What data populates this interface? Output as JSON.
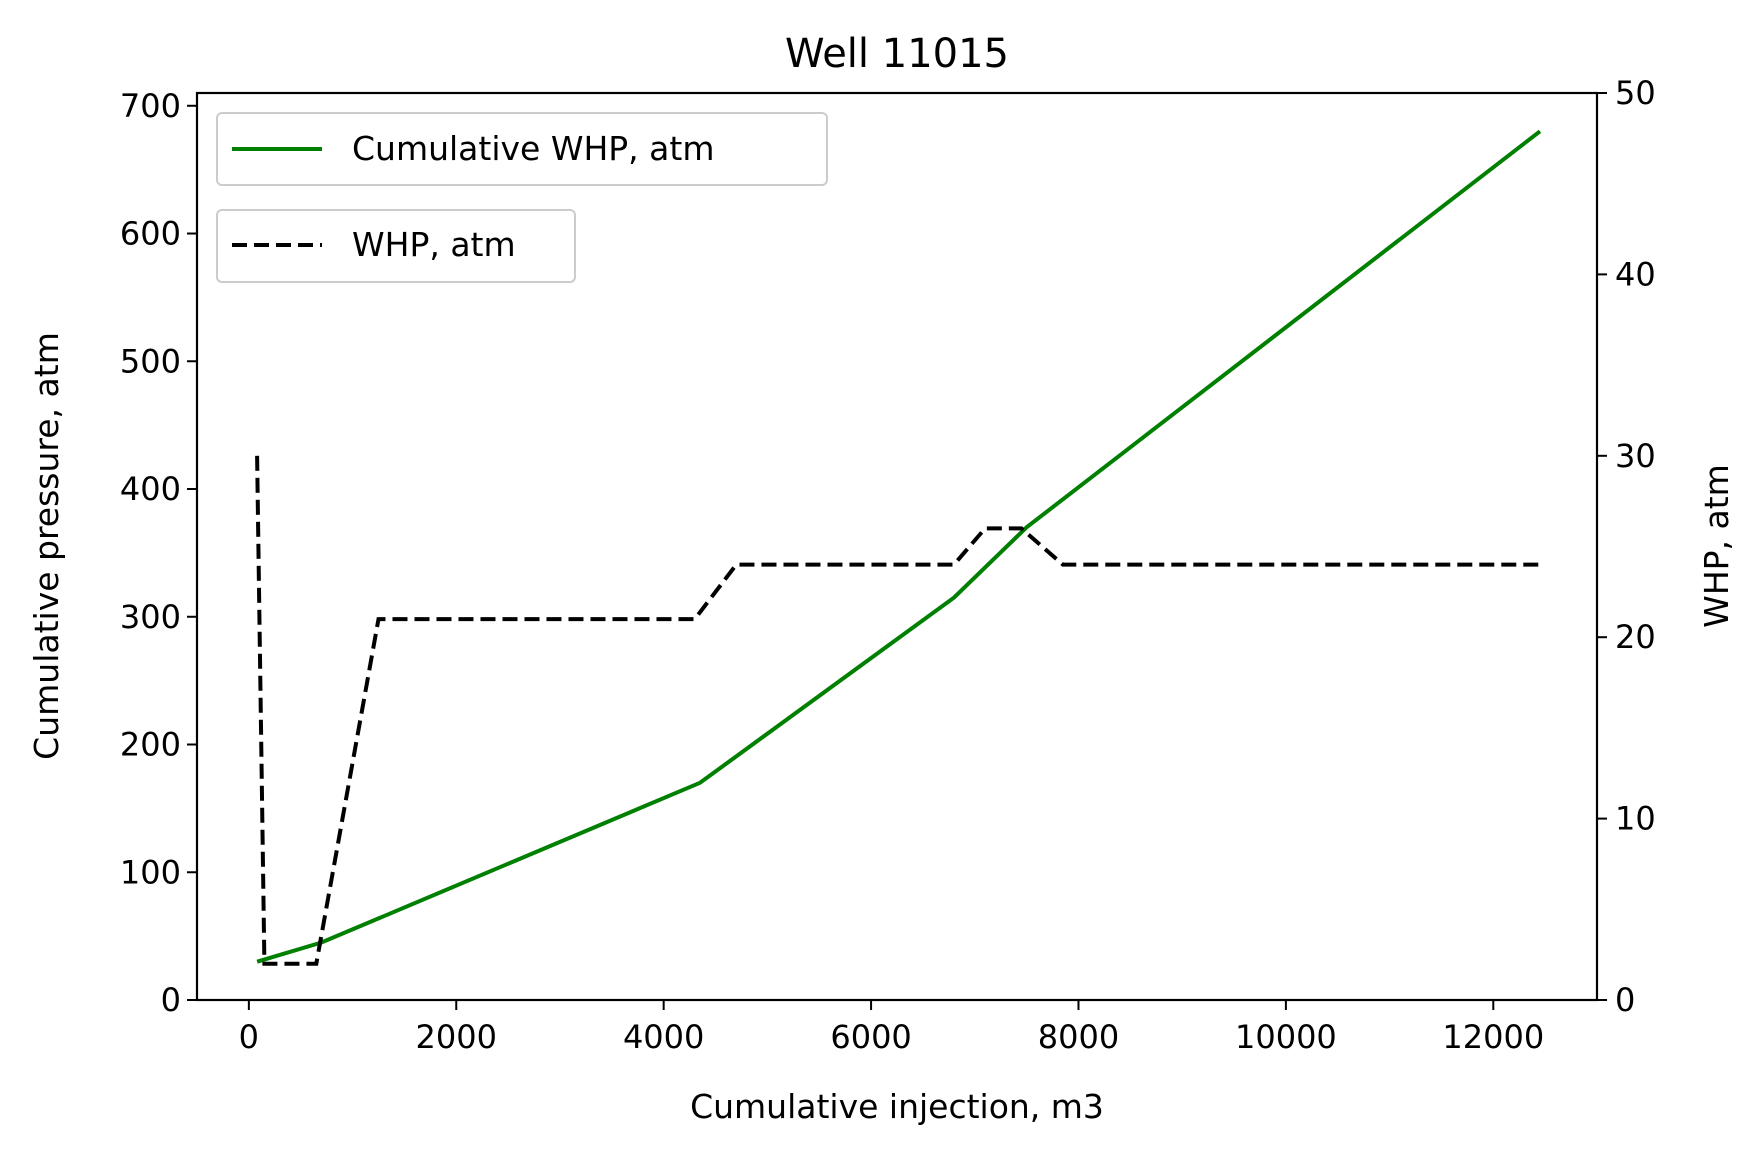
{
  "chart_data": {
    "type": "line",
    "title": "Well 11015",
    "xlabel": "Cumulative injection, m3",
    "ylabel": "Cumulative pressure, atm",
    "y2label": "WHP, atm",
    "xlim": [
      -500,
      13000
    ],
    "ylim": [
      0,
      710
    ],
    "y2lim": [
      0,
      50
    ],
    "xticks": [
      0,
      2000,
      4000,
      6000,
      8000,
      10000,
      12000
    ],
    "yticks": [
      0,
      100,
      200,
      300,
      400,
      500,
      600,
      700
    ],
    "y2ticks": [
      0,
      10,
      20,
      30,
      40,
      50
    ],
    "grid": false,
    "legend_placement": "top-left",
    "series": [
      {
        "name": "Cumulative WHP, atm",
        "axis": "left",
        "color": "#008000",
        "style": "solid",
        "x": [
          80,
          700,
          4350,
          6800,
          7500,
          12450
        ],
        "y": [
          30,
          45,
          170,
          315,
          370,
          680
        ]
      },
      {
        "name": "WHP, atm",
        "axis": "right",
        "color": "#000000",
        "style": "dashed",
        "x": [
          80,
          150,
          650,
          1250,
          4300,
          4700,
          6800,
          7100,
          7450,
          7850,
          12450
        ],
        "y": [
          30,
          2,
          2,
          21,
          21,
          24,
          24,
          26,
          26,
          24,
          24
        ]
      }
    ]
  }
}
